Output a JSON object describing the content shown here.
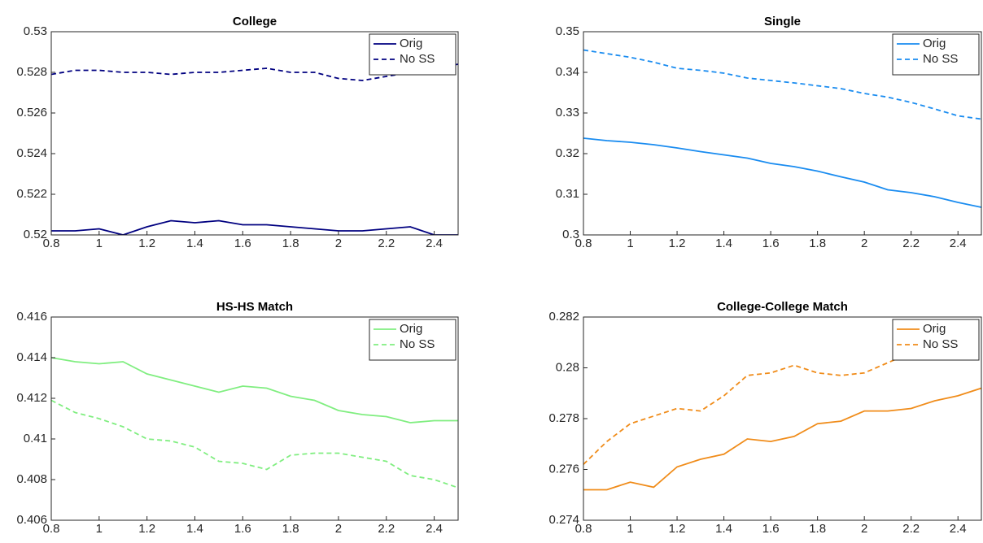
{
  "chart_data": [
    {
      "type": "line",
      "title": "College",
      "legend": "upper right",
      "x": [
        0.8,
        0.9,
        1.0,
        1.1,
        1.2,
        1.3,
        1.4,
        1.5,
        1.6,
        1.7,
        1.8,
        1.9,
        2.0,
        2.1,
        2.2,
        2.3,
        2.4,
        2.5
      ],
      "xlim": [
        0.8,
        2.5
      ],
      "xticks": [
        0.8,
        1,
        1.2,
        1.4,
        1.6,
        1.8,
        2,
        2.2,
        2.4
      ],
      "ylim": [
        0.52,
        0.53
      ],
      "yticks": [
        0.52,
        0.522,
        0.524,
        0.526,
        0.528,
        0.53
      ],
      "series": [
        {
          "name": "Orig",
          "color": "#000080",
          "linestyle": "solid",
          "values": [
            0.5202,
            0.5202,
            0.5203,
            0.52,
            0.5204,
            0.5207,
            0.5206,
            0.5207,
            0.5205,
            0.5205,
            0.5204,
            0.5203,
            0.5202,
            0.5202,
            0.5203,
            0.5204,
            0.52,
            0.52
          ]
        },
        {
          "name": "No SS",
          "color": "#000080",
          "linestyle": "dashed",
          "values": [
            0.5279,
            0.5281,
            0.5281,
            0.528,
            0.528,
            0.5279,
            0.528,
            0.528,
            0.5281,
            0.5282,
            0.528,
            0.528,
            0.5277,
            0.5276,
            0.5278,
            0.528,
            0.5282,
            0.5284
          ]
        }
      ]
    },
    {
      "type": "line",
      "title": "Single",
      "legend": "upper right",
      "x": [
        0.8,
        0.9,
        1.0,
        1.1,
        1.2,
        1.3,
        1.4,
        1.5,
        1.6,
        1.7,
        1.8,
        1.9,
        2.0,
        2.1,
        2.2,
        2.3,
        2.4,
        2.5
      ],
      "xlim": [
        0.8,
        2.5
      ],
      "xticks": [
        0.8,
        1,
        1.2,
        1.4,
        1.6,
        1.8,
        2,
        2.2,
        2.4
      ],
      "ylim": [
        0.3,
        0.35
      ],
      "yticks": [
        0.3,
        0.31,
        0.32,
        0.33,
        0.34,
        0.35
      ],
      "series": [
        {
          "name": "Orig",
          "color": "#1a8cf0",
          "linestyle": "solid",
          "values": [
            0.3238,
            0.3232,
            0.3228,
            0.3222,
            0.3214,
            0.3205,
            0.3197,
            0.3189,
            0.3176,
            0.3168,
            0.3157,
            0.3143,
            0.313,
            0.3111,
            0.3104,
            0.3094,
            0.308,
            0.3068
          ]
        },
        {
          "name": "No SS",
          "color": "#1a8cf0",
          "linestyle": "dashed",
          "values": [
            0.3455,
            0.3446,
            0.3437,
            0.3425,
            0.341,
            0.3405,
            0.3398,
            0.3386,
            0.338,
            0.3374,
            0.3367,
            0.336,
            0.3348,
            0.3339,
            0.3326,
            0.331,
            0.3293,
            0.3285
          ]
        }
      ]
    },
    {
      "type": "line",
      "title": "HS-HS Match",
      "legend": "upper right",
      "x": [
        0.8,
        0.9,
        1.0,
        1.1,
        1.2,
        1.3,
        1.4,
        1.5,
        1.6,
        1.7,
        1.8,
        1.9,
        2.0,
        2.1,
        2.2,
        2.3,
        2.4,
        2.5
      ],
      "xlim": [
        0.8,
        2.5
      ],
      "xticks": [
        0.8,
        1,
        1.2,
        1.4,
        1.6,
        1.8,
        2,
        2.2,
        2.4
      ],
      "ylim": [
        0.406,
        0.416
      ],
      "yticks": [
        0.406,
        0.408,
        0.41,
        0.412,
        0.414,
        0.416
      ],
      "series": [
        {
          "name": "Orig",
          "color": "#80ee80",
          "linestyle": "solid",
          "values": [
            0.414,
            0.4138,
            0.4137,
            0.4138,
            0.4132,
            0.4129,
            0.4126,
            0.4123,
            0.4126,
            0.4125,
            0.4121,
            0.4119,
            0.4114,
            0.4112,
            0.4111,
            0.4108,
            0.4109,
            0.4109
          ]
        },
        {
          "name": "No SS",
          "color": "#80ee80",
          "linestyle": "dashed",
          "values": [
            0.4119,
            0.4113,
            0.411,
            0.4106,
            0.41,
            0.4099,
            0.4096,
            0.4089,
            0.4088,
            0.4085,
            0.4092,
            0.4093,
            0.4093,
            0.4091,
            0.4089,
            0.4082,
            0.408,
            0.4076
          ]
        }
      ]
    },
    {
      "type": "line",
      "title": "College-College Match",
      "legend": "upper right",
      "x": [
        0.8,
        0.9,
        1.0,
        1.1,
        1.2,
        1.3,
        1.4,
        1.5,
        1.6,
        1.7,
        1.8,
        1.9,
        2.0,
        2.1,
        2.2,
        2.3,
        2.4,
        2.5
      ],
      "xlim": [
        0.8,
        2.5
      ],
      "xticks": [
        0.8,
        1,
        1.2,
        1.4,
        1.6,
        1.8,
        2,
        2.2,
        2.4
      ],
      "ylim": [
        0.274,
        0.282
      ],
      "yticks": [
        0.274,
        0.276,
        0.278,
        0.28,
        0.282
      ],
      "series": [
        {
          "name": "Orig",
          "color": "#f08c1a",
          "linestyle": "solid",
          "values": [
            0.2752,
            0.2752,
            0.2755,
            0.2753,
            0.2761,
            0.2764,
            0.2766,
            0.2772,
            0.2771,
            0.2773,
            0.2778,
            0.2779,
            0.2783,
            0.2783,
            0.2784,
            0.2787,
            0.2789,
            0.2792
          ]
        },
        {
          "name": "No SS",
          "color": "#f08c1a",
          "linestyle": "dashed",
          "values": [
            0.2762,
            0.2771,
            0.2778,
            0.2781,
            0.2784,
            0.2783,
            0.2789,
            0.2797,
            0.2798,
            0.2801,
            0.2798,
            0.2797,
            0.2798,
            0.2802,
            0.2806,
            0.281,
            0.2811,
            0.2815
          ]
        }
      ]
    }
  ]
}
